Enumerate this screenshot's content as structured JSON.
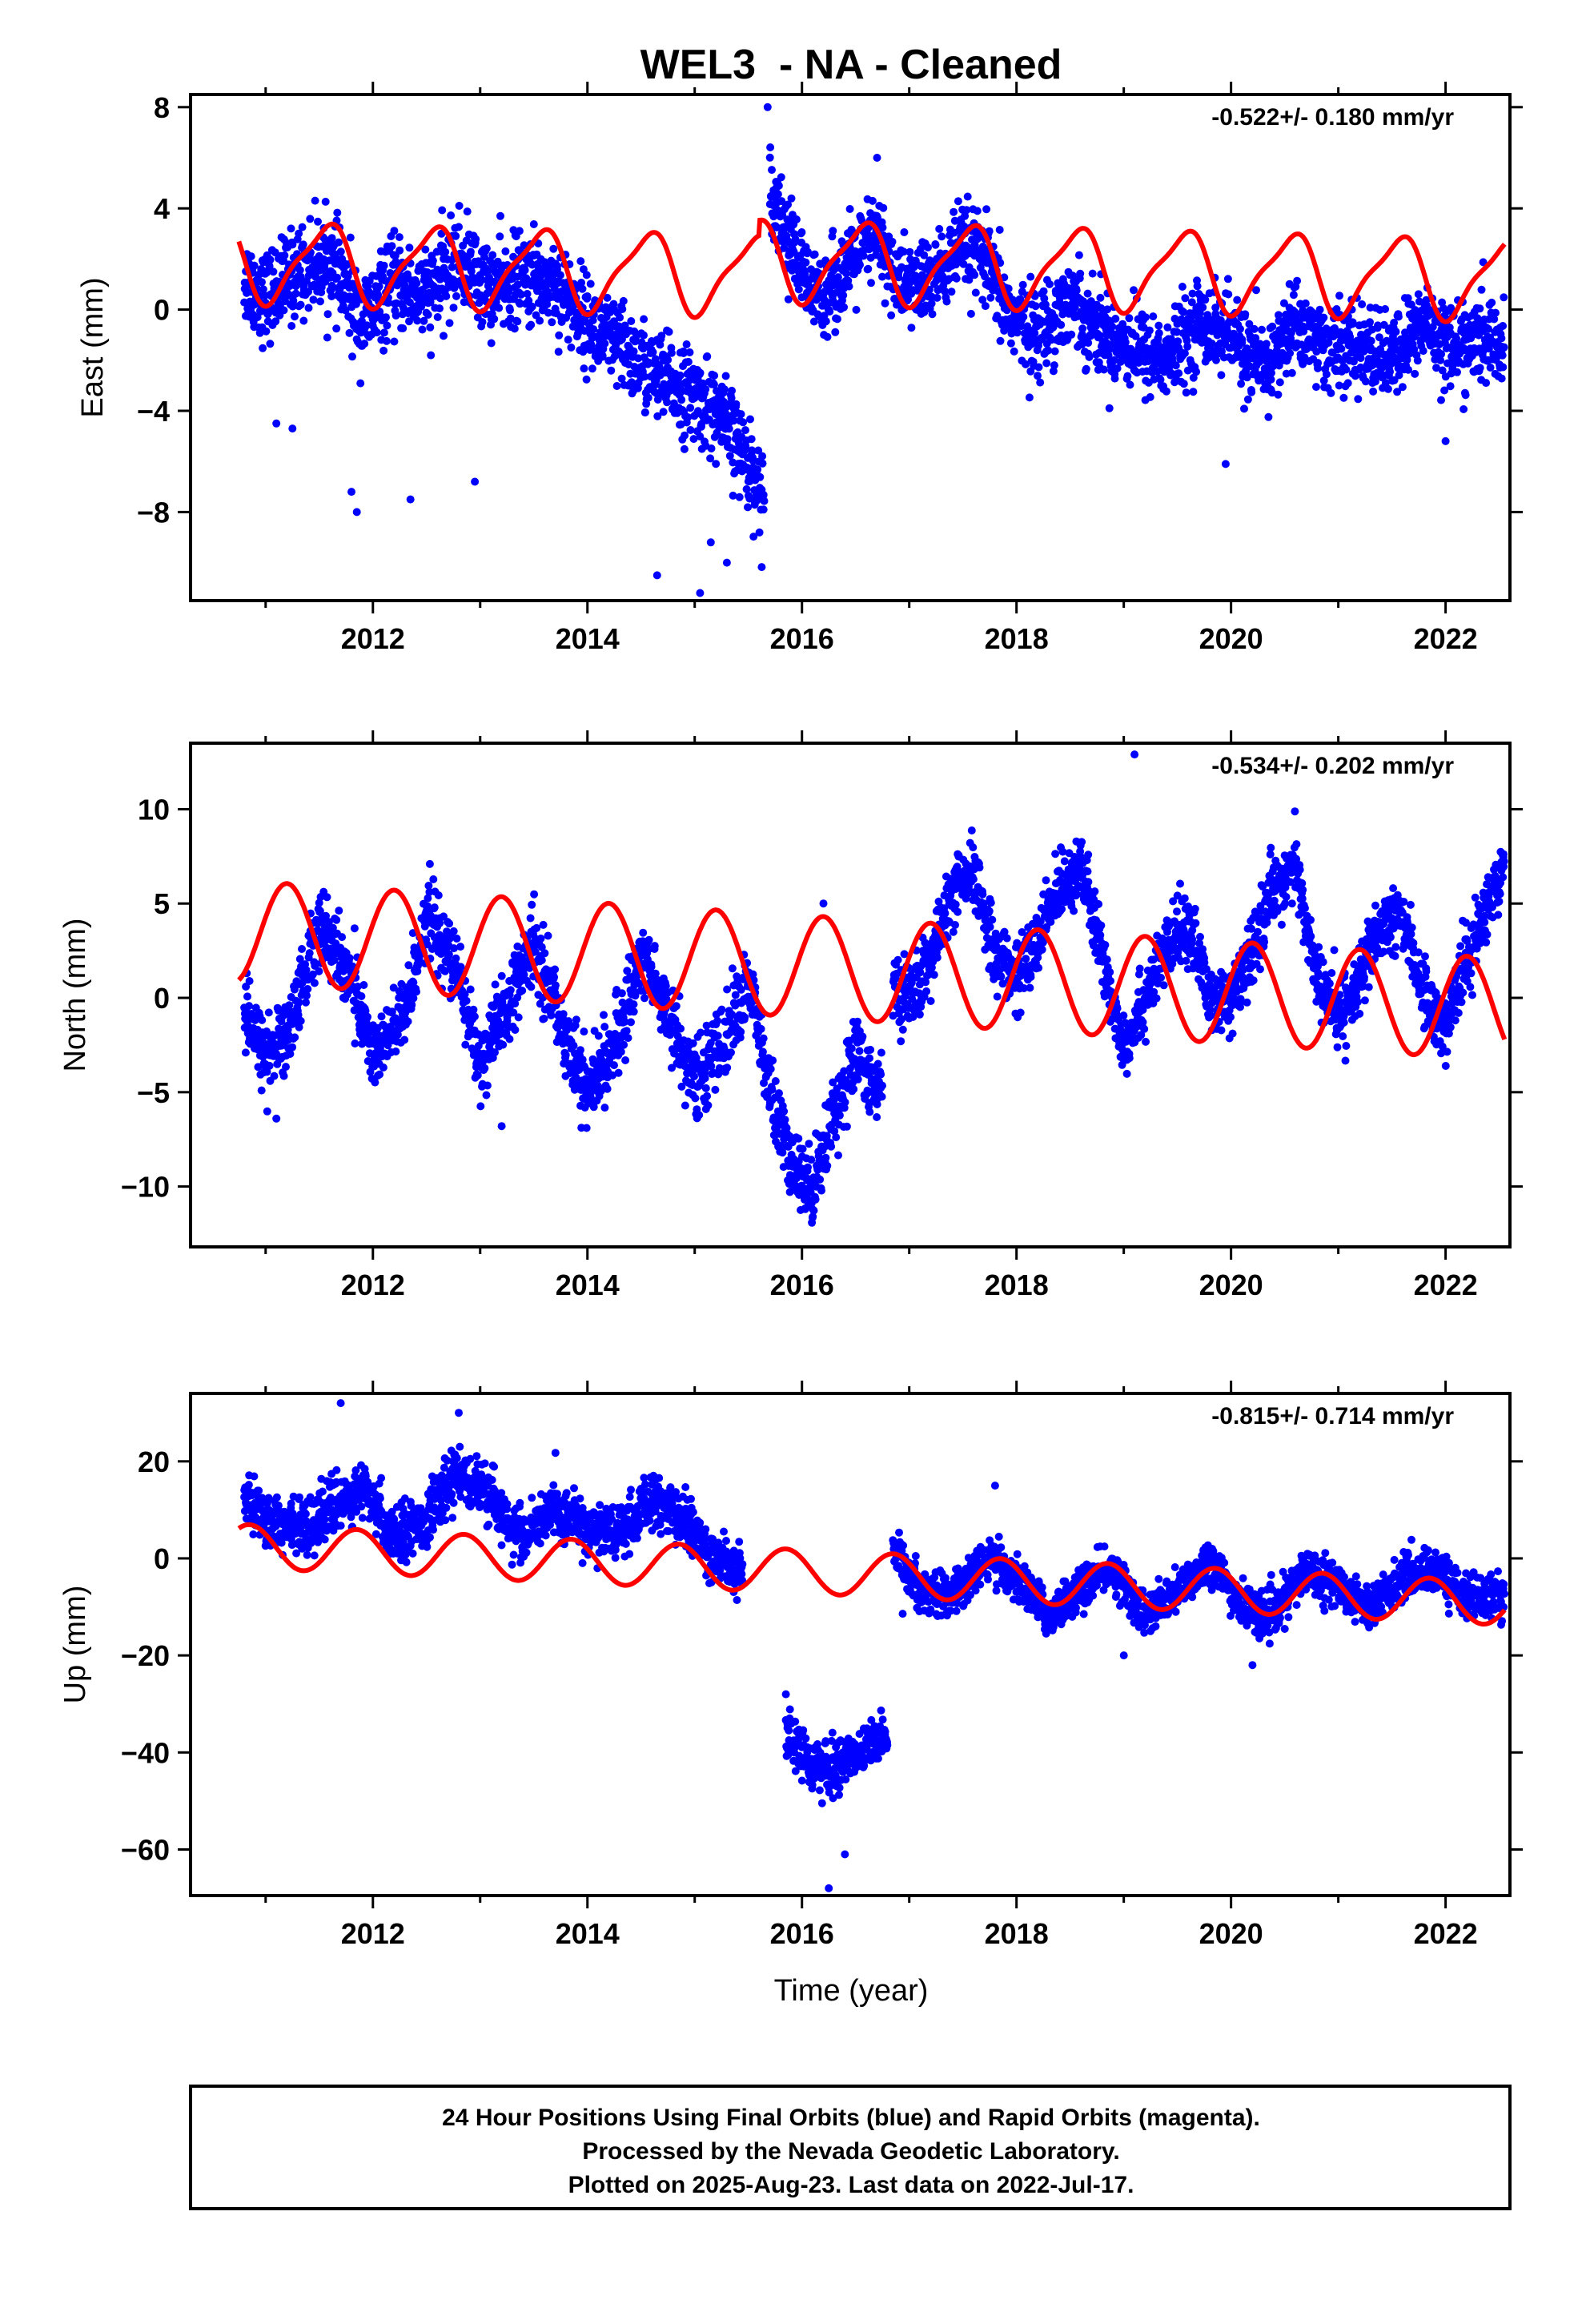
{
  "page": {
    "title": "WEL3  - NA - Cleaned",
    "footer": [
      "24 Hour Positions Using Final Orbits (blue) and Rapid Orbits (magenta).",
      "Processed by the Nevada Geodetic Laboratory.",
      "Plotted on 2025-Aug-23. Last data on 2022-Jul-17."
    ]
  },
  "colors": {
    "data": "#0000ff",
    "model": "#ff0000",
    "axis": "#000000"
  },
  "chart_data": [
    {
      "type": "scatter",
      "name": "east",
      "ylabel": "East (mm)",
      "rate": "-0.522+/- 0.180 mm/yr",
      "xlim": [
        2010.3,
        2022.6
      ],
      "ylim": [
        -11.5,
        8.5
      ],
      "xticks": [
        2012,
        2014,
        2016,
        2018,
        2020,
        2022
      ],
      "yticks": [
        8,
        4,
        0,
        -4,
        -8
      ],
      "segments": [
        {
          "x": [
            2010.8,
            2011.0,
            2011.3,
            2011.6,
            2011.9,
            2012.2,
            2012.5,
            2012.8,
            2013.1,
            2013.4,
            2013.7,
            2014.0,
            2014.3,
            2014.6,
            2014.9,
            2015.2,
            2015.5,
            2015.65
          ],
          "y": [
            1.2,
            0.5,
            1.5,
            2.0,
            -0.5,
            1.0,
            0.5,
            2.0,
            0.8,
            1.2,
            1.0,
            -0.5,
            -1.5,
            -2.5,
            -3.2,
            -4.0,
            -6.0,
            -7.5
          ],
          "spread": 1.6
        },
        {
          "x": [
            2015.7,
            2015.9,
            2016.1,
            2016.3,
            2016.5,
            2016.7,
            2016.9,
            2017.1,
            2017.3,
            2017.5,
            2017.7,
            2017.9,
            2018.2,
            2018.5,
            2018.8,
            2019.1,
            2019.4,
            2019.7,
            2020.0,
            2020.3,
            2020.6,
            2020.9,
            2021.2,
            2021.5,
            2021.8,
            2022.1,
            2022.4,
            2022.55
          ],
          "y": [
            5.0,
            2.5,
            0.5,
            1.0,
            2.0,
            3.0,
            1.0,
            1.0,
            1.5,
            2.5,
            2.0,
            0.0,
            -1.0,
            0.5,
            -1.0,
            -1.5,
            -2.0,
            -0.5,
            -1.0,
            -2.5,
            -0.5,
            -1.5,
            -1.5,
            -2.0,
            -0.5,
            -1.5,
            -1.2,
            -1.5
          ],
          "spread": 1.5
        }
      ],
      "outliers": [
        [
          2011.1,
          -4.5
        ],
        [
          2011.25,
          -4.7
        ],
        [
          2011.85,
          -8.0
        ],
        [
          2011.8,
          -7.2
        ],
        [
          2012.35,
          -7.5
        ],
        [
          2012.95,
          -6.8
        ],
        [
          2014.65,
          -10.5
        ],
        [
          2015.05,
          -11.2
        ],
        [
          2015.3,
          -10.0
        ],
        [
          2015.15,
          -9.2
        ],
        [
          2015.68,
          8.0
        ],
        [
          2019.95,
          -6.1
        ],
        [
          2016.7,
          6.0
        ],
        [
          2022.0,
          -5.2
        ]
      ],
      "model": {
        "base": [
          1.9,
          -0.11
        ],
        "amp1": 1.5,
        "phase1": 0.55,
        "amp2": 0.4,
        "phase2": 0.2,
        "offsets": [
          [
            2015.6,
            0.6
          ]
        ]
      }
    },
    {
      "type": "scatter",
      "name": "north",
      "ylabel": "North (mm)",
      "rate": "-0.534+/- 0.202 mm/yr",
      "xlim": [
        2010.3,
        2022.6
      ],
      "ylim": [
        -13.2,
        13.5
      ],
      "xticks": [
        2012,
        2014,
        2016,
        2018,
        2020,
        2022
      ],
      "yticks": [
        10,
        5,
        0,
        -5,
        -10
      ],
      "segments": [
        {
          "x": [
            2010.8,
            2011.0,
            2011.2,
            2011.5,
            2011.8,
            2012.0,
            2012.3,
            2012.5,
            2012.8,
            2013.0,
            2013.3,
            2013.5,
            2013.8,
            2014.0,
            2014.3,
            2014.5,
            2014.8,
            2015.0,
            2015.3,
            2015.5,
            2015.7,
            2015.9,
            2016.1,
            2016.3,
            2016.5,
            2016.75
          ],
          "y": [
            -1.0,
            -3.0,
            -2.0,
            4.0,
            1.0,
            -3.0,
            -1.0,
            4.5,
            1.0,
            -3.5,
            0.0,
            3.0,
            -2.0,
            -5.0,
            -2.0,
            2.5,
            -1.5,
            -4.5,
            -2.0,
            1.0,
            -5.0,
            -9.0,
            -10.0,
            -6.0,
            -3.0,
            -5.0
          ],
          "spread": 1.8
        },
        {
          "x": [
            2016.85,
            2017.0,
            2017.2,
            2017.4,
            2017.6,
            2017.8,
            2018.0,
            2018.2,
            2018.4,
            2018.6,
            2018.8,
            2019.0,
            2019.2,
            2019.4,
            2019.6,
            2019.8,
            2020.0,
            2020.2,
            2020.4,
            2020.6,
            2020.8,
            2021.0,
            2021.2,
            2021.4,
            2021.6,
            2021.8,
            2022.0,
            2022.2,
            2022.4,
            2022.55
          ],
          "y": [
            0.5,
            0.0,
            2.0,
            5.5,
            6.5,
            2.5,
            1.0,
            3.0,
            6.0,
            7.0,
            2.0,
            -2.5,
            0.0,
            2.5,
            4.0,
            0.0,
            -0.5,
            2.5,
            6.0,
            7.0,
            1.0,
            -1.0,
            1.0,
            3.5,
            4.5,
            0.0,
            -1.5,
            2.0,
            5.0,
            7.5
          ],
          "spread": 1.6
        }
      ],
      "outliers": [
        [
          2019.1,
          12.9
        ],
        [
          2011.1,
          -6.4
        ],
        [
          2016.2,
          5.0
        ],
        [
          2013.2,
          -6.8
        ]
      ],
      "model": {
        "base": [
          3.5,
          -0.35
        ],
        "amp1": 2.7,
        "phase1": 0.2,
        "amp2": 0.0,
        "phase2": 0.0,
        "offsets": []
      }
    },
    {
      "type": "scatter",
      "name": "up",
      "ylabel": "Up (mm)",
      "rate": "-0.815+/- 0.714 mm/yr",
      "xlim": [
        2010.3,
        2022.6
      ],
      "ylim": [
        -69.5,
        34.0
      ],
      "xticks": [
        2012,
        2014,
        2016,
        2018,
        2020,
        2022
      ],
      "yticks": [
        20,
        0,
        -20,
        -40,
        -60
      ],
      "segments": [
        {
          "x": [
            2010.8,
            2011.0,
            2011.3,
            2011.6,
            2011.9,
            2012.2,
            2012.5,
            2012.8,
            2013.1,
            2013.4,
            2013.7,
            2014.0,
            2014.3,
            2014.6,
            2014.9,
            2015.2,
            2015.45
          ],
          "y": [
            14,
            8,
            6,
            10,
            14,
            5,
            8,
            18,
            12,
            4,
            10,
            6,
            5,
            12,
            8,
            0,
            -2
          ],
          "spread": 5.0
        },
        {
          "x": [
            2015.85,
            2016.0,
            2016.2,
            2016.4,
            2016.6,
            2016.8
          ],
          "y": [
            -36,
            -40,
            -44,
            -42,
            -38,
            -38
          ],
          "spread": 4.5
        },
        {
          "x": [
            2016.85,
            2017.1,
            2017.4,
            2017.7,
            2018.0,
            2018.3,
            2018.6,
            2018.9,
            2019.2,
            2019.5,
            2019.8,
            2020.1,
            2020.4,
            2020.7,
            2021.0,
            2021.3,
            2021.6,
            2021.9,
            2022.2,
            2022.55
          ],
          "y": [
            2,
            -6,
            -8,
            0,
            -4,
            -12,
            -6,
            -2,
            -12,
            -7,
            0,
            -10,
            -12,
            -2,
            -6,
            -10,
            -4,
            -2,
            -8,
            -8
          ],
          "spread": 4.0
        }
      ],
      "outliers": [
        [
          2011.7,
          32
        ],
        [
          2012.8,
          30
        ],
        [
          2016.25,
          -68
        ],
        [
          2016.4,
          -61
        ],
        [
          2015.85,
          -28
        ],
        [
          2017.8,
          15
        ],
        [
          2019.0,
          -20
        ],
        [
          2020.2,
          -22
        ]
      ],
      "model": {
        "base": [
          2.5,
          -1.0
        ],
        "amp1": 4.5,
        "phase1": 0.85,
        "amp2": 0.0,
        "phase2": 0.0,
        "offsets": []
      }
    }
  ],
  "xlabel": "Time (year)"
}
